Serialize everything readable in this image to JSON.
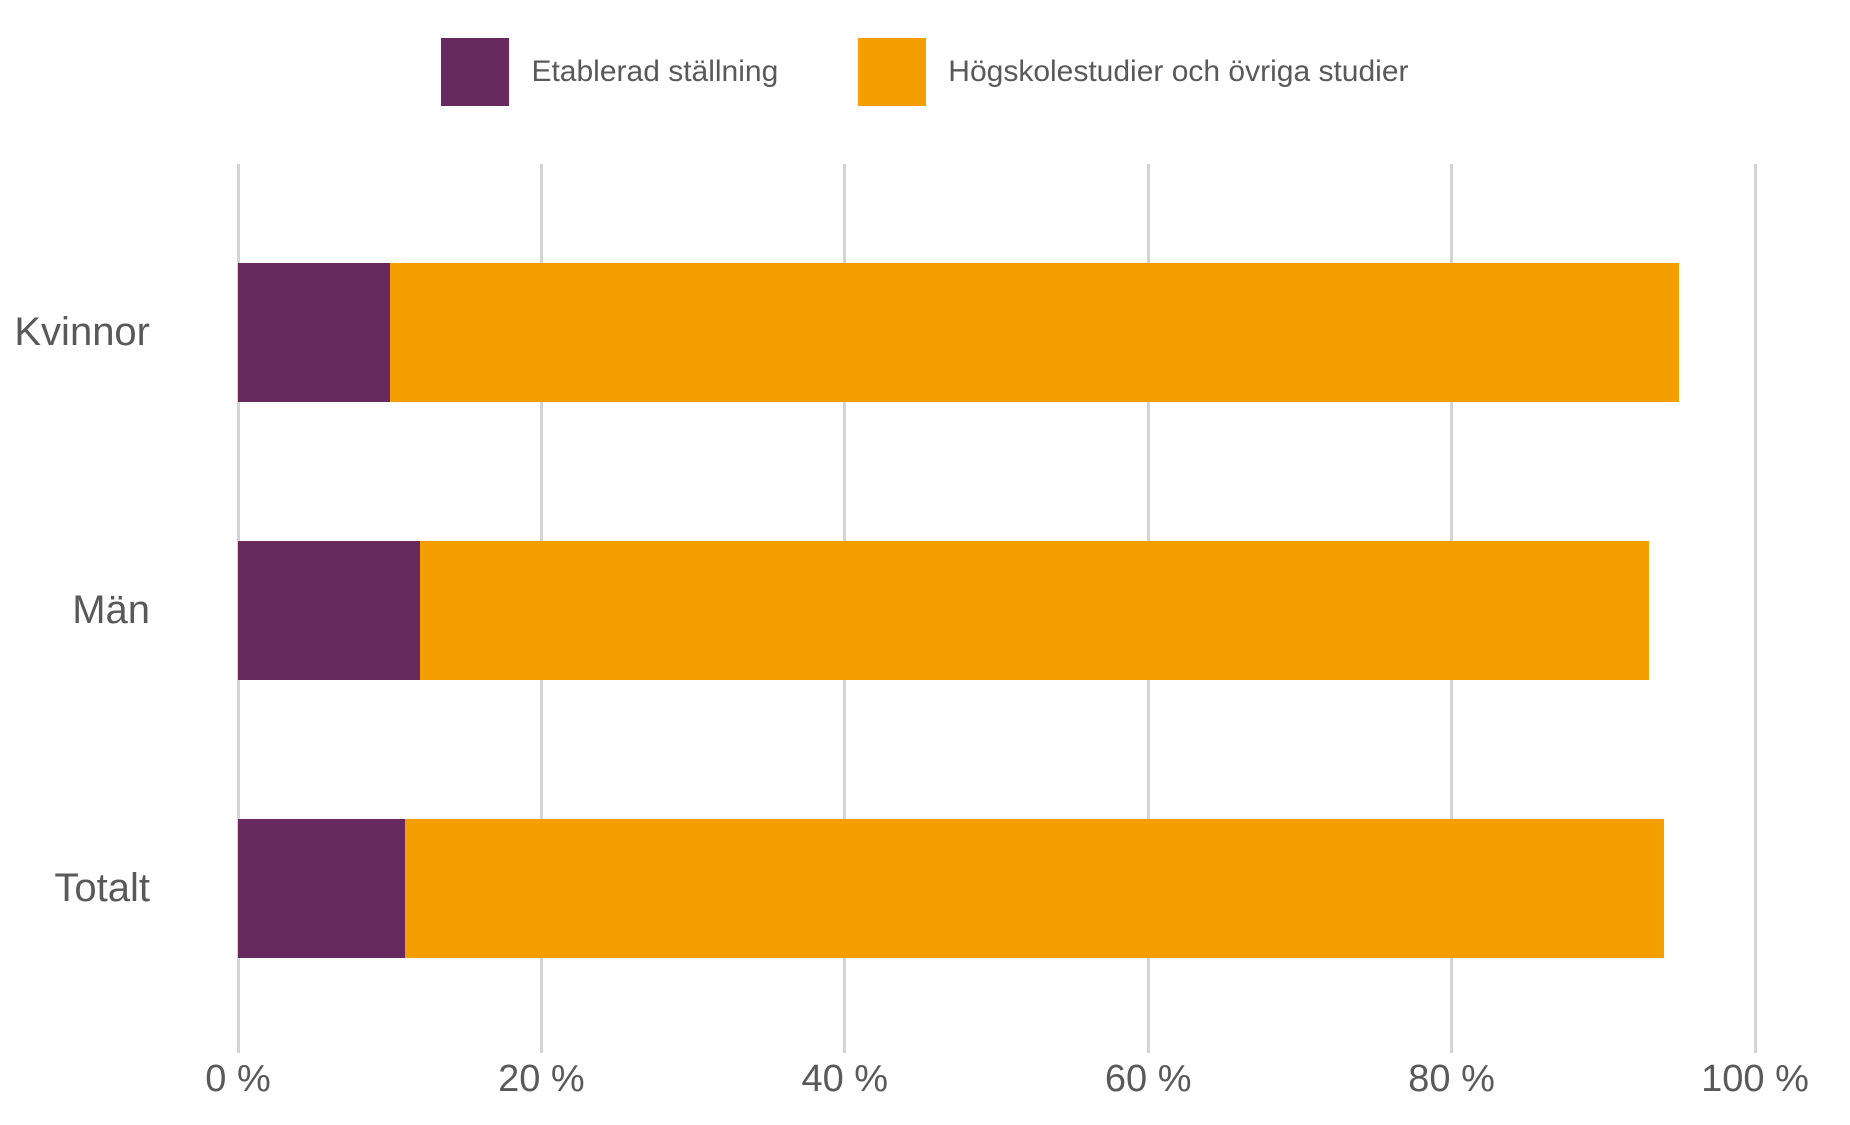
{
  "chart_data": {
    "type": "bar",
    "orientation": "horizontal",
    "stacked": true,
    "title": "",
    "xlabel": "",
    "ylabel": "",
    "categories": [
      "Kvinnor",
      "Män",
      "Totalt"
    ],
    "series": [
      {
        "name": "Etablerad ställning",
        "color": "#67295E",
        "values": [
          10,
          12,
          11
        ]
      },
      {
        "name": "Högskolestudier och övriga studier",
        "color": "#F49E00",
        "values": [
          85,
          81,
          83
        ]
      }
    ],
    "xlim": [
      0,
      100
    ],
    "x_ticks": [
      {
        "value": 0,
        "label": "0 %"
      },
      {
        "value": 20,
        "label": "20 %"
      },
      {
        "value": 40,
        "label": "40 %"
      },
      {
        "value": 60,
        "label": "60 %"
      },
      {
        "value": 80,
        "label": "80 %"
      },
      {
        "value": 100,
        "label": "100 %"
      }
    ],
    "grid": "vertical",
    "legend_position": "top-center",
    "colors": {
      "gridline": "#D4D4D4",
      "axis_text": "#595959",
      "background": "#FFFFFF"
    }
  }
}
